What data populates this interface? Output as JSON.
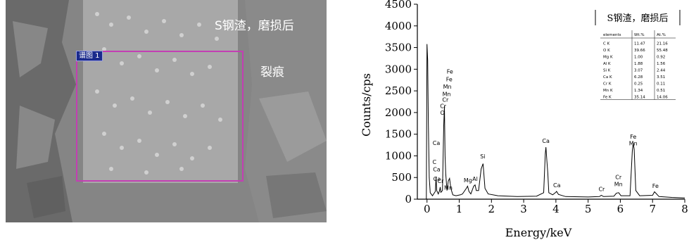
{
  "sem_image": {
    "sample_label": "S钢渣，磨损后",
    "crack_label": "裂痕",
    "roi_label": "谱图 1",
    "colors": {
      "roi_border": "#c33fb3",
      "roi_tag_bg": "#1a2a8c"
    }
  },
  "chart_data": {
    "type": "line",
    "xlabel": "Energy/keV",
    "ylabel": "Counts/cps",
    "xlim": [
      -0.3,
      8
    ],
    "ylim": [
      0,
      4500
    ],
    "x_ticks": [
      0,
      1,
      2,
      3,
      4,
      5,
      6,
      7,
      8
    ],
    "y_ticks": [
      0,
      500,
      1000,
      1500,
      2000,
      2500,
      3000,
      3500,
      4000,
      4500
    ],
    "legend_title": "S钢渣，磨损后",
    "grid": false,
    "spectrum": [
      {
        "x": -0.1,
        "y": 0
      },
      {
        "x": -0.02,
        "y": 0
      },
      {
        "x": 0.0,
        "y": 3580
      },
      {
        "x": 0.02,
        "y": 3200
      },
      {
        "x": 0.04,
        "y": 1800
      },
      {
        "x": 0.07,
        "y": 500
      },
      {
        "x": 0.1,
        "y": 150
      },
      {
        "x": 0.17,
        "y": 80
      },
      {
        "x": 0.26,
        "y": 180
      },
      {
        "x": 0.28,
        "y": 520
      },
      {
        "x": 0.3,
        "y": 200
      },
      {
        "x": 0.35,
        "y": 120
      },
      {
        "x": 0.39,
        "y": 200
      },
      {
        "x": 0.41,
        "y": 280
      },
      {
        "x": 0.43,
        "y": 160
      },
      {
        "x": 0.48,
        "y": 200
      },
      {
        "x": 0.52,
        "y": 1700
      },
      {
        "x": 0.54,
        "y": 2150
      },
      {
        "x": 0.56,
        "y": 1000
      },
      {
        "x": 0.58,
        "y": 600
      },
      {
        "x": 0.62,
        "y": 200
      },
      {
        "x": 0.66,
        "y": 420
      },
      {
        "x": 0.7,
        "y": 480
      },
      {
        "x": 0.74,
        "y": 250
      },
      {
        "x": 0.8,
        "y": 100
      },
      {
        "x": 0.9,
        "y": 80
      },
      {
        "x": 1.04,
        "y": 100
      },
      {
        "x": 1.1,
        "y": 120
      },
      {
        "x": 1.22,
        "y": 250
      },
      {
        "x": 1.26,
        "y": 300
      },
      {
        "x": 1.3,
        "y": 180
      },
      {
        "x": 1.36,
        "y": 120
      },
      {
        "x": 1.45,
        "y": 300
      },
      {
        "x": 1.49,
        "y": 330
      },
      {
        "x": 1.53,
        "y": 200
      },
      {
        "x": 1.6,
        "y": 200
      },
      {
        "x": 1.68,
        "y": 700
      },
      {
        "x": 1.74,
        "y": 820
      },
      {
        "x": 1.8,
        "y": 250
      },
      {
        "x": 1.9,
        "y": 120
      },
      {
        "x": 2.2,
        "y": 80
      },
      {
        "x": 2.8,
        "y": 60
      },
      {
        "x": 3.4,
        "y": 70
      },
      {
        "x": 3.62,
        "y": 150
      },
      {
        "x": 3.67,
        "y": 1050
      },
      {
        "x": 3.69,
        "y": 1200
      },
      {
        "x": 3.72,
        "y": 900
      },
      {
        "x": 3.75,
        "y": 600
      },
      {
        "x": 3.78,
        "y": 150
      },
      {
        "x": 3.9,
        "y": 100
      },
      {
        "x": 4.0,
        "y": 160
      },
      {
        "x": 4.02,
        "y": 180
      },
      {
        "x": 4.08,
        "y": 110
      },
      {
        "x": 4.3,
        "y": 60
      },
      {
        "x": 5.0,
        "y": 50
      },
      {
        "x": 5.35,
        "y": 60
      },
      {
        "x": 5.41,
        "y": 90
      },
      {
        "x": 5.48,
        "y": 60
      },
      {
        "x": 5.8,
        "y": 70
      },
      {
        "x": 5.88,
        "y": 140
      },
      {
        "x": 5.95,
        "y": 150
      },
      {
        "x": 6.02,
        "y": 80
      },
      {
        "x": 6.3,
        "y": 80
      },
      {
        "x": 6.37,
        "y": 1100
      },
      {
        "x": 6.4,
        "y": 1300
      },
      {
        "x": 6.43,
        "y": 1150
      },
      {
        "x": 6.48,
        "y": 200
      },
      {
        "x": 6.6,
        "y": 80
      },
      {
        "x": 7.0,
        "y": 90
      },
      {
        "x": 7.06,
        "y": 170
      },
      {
        "x": 7.1,
        "y": 140
      },
      {
        "x": 7.2,
        "y": 60
      },
      {
        "x": 7.6,
        "y": 40
      },
      {
        "x": 8.0,
        "y": 30
      }
    ],
    "peak_labels": [
      {
        "text": "Fe",
        "x": 0.71,
        "y": 2900
      },
      {
        "text": "Fe",
        "x": 0.69,
        "y": 2720
      },
      {
        "text": "Mn",
        "x": 0.63,
        "y": 2550
      },
      {
        "text": "Mn",
        "x": 0.61,
        "y": 2380
      },
      {
        "text": "Cr",
        "x": 0.57,
        "y": 2250
      },
      {
        "text": "Cr",
        "x": 0.5,
        "y": 2100
      },
      {
        "text": "O",
        "x": 0.48,
        "y": 1950
      },
      {
        "text": "Ca",
        "x": 0.29,
        "y": 1250
      },
      {
        "text": "C",
        "x": 0.23,
        "y": 810
      },
      {
        "text": "Ca",
        "x": 0.3,
        "y": 640
      },
      {
        "text": "Ca",
        "x": 0.31,
        "y": 420
      },
      {
        "text": "Cr",
        "x": 0.42,
        "y": 370
      },
      {
        "text": "Mn",
        "x": 0.66,
        "y": 220
      },
      {
        "text": "Mg",
        "x": 1.27,
        "y": 390
      },
      {
        "text": "Al",
        "x": 1.49,
        "y": 420
      },
      {
        "text": "Si",
        "x": 1.73,
        "y": 940
      },
      {
        "text": "Ca",
        "x": 3.69,
        "y": 1300
      },
      {
        "text": "Ca",
        "x": 4.03,
        "y": 280
      },
      {
        "text": "Cr",
        "x": 5.42,
        "y": 190
      },
      {
        "text": "Cr",
        "x": 5.94,
        "y": 460
      },
      {
        "text": "Mn",
        "x": 5.94,
        "y": 300
      },
      {
        "text": "Fe",
        "x": 6.4,
        "y": 1400
      },
      {
        "text": "Mn",
        "x": 6.4,
        "y": 1240
      },
      {
        "text": "Fe",
        "x": 7.09,
        "y": 260
      }
    ],
    "composition_table": {
      "headers": [
        "elements",
        "Wt.%",
        "At.%"
      ],
      "rows": [
        [
          "C K",
          "11.47",
          "21.16"
        ],
        [
          "O K",
          "39.66",
          "55.48"
        ],
        [
          "Mg K",
          "1.00",
          "0.92"
        ],
        [
          "Al K",
          "1.88",
          "1.56"
        ],
        [
          "Si K",
          "3.07",
          "2.44"
        ],
        [
          "Ca K",
          "6.28",
          "3.51"
        ],
        [
          "Cr K",
          "0.25",
          "0.11"
        ],
        [
          "Mn K",
          "1.34",
          "0.51"
        ],
        [
          "Fe K",
          "35.14",
          "14.06"
        ]
      ]
    }
  }
}
